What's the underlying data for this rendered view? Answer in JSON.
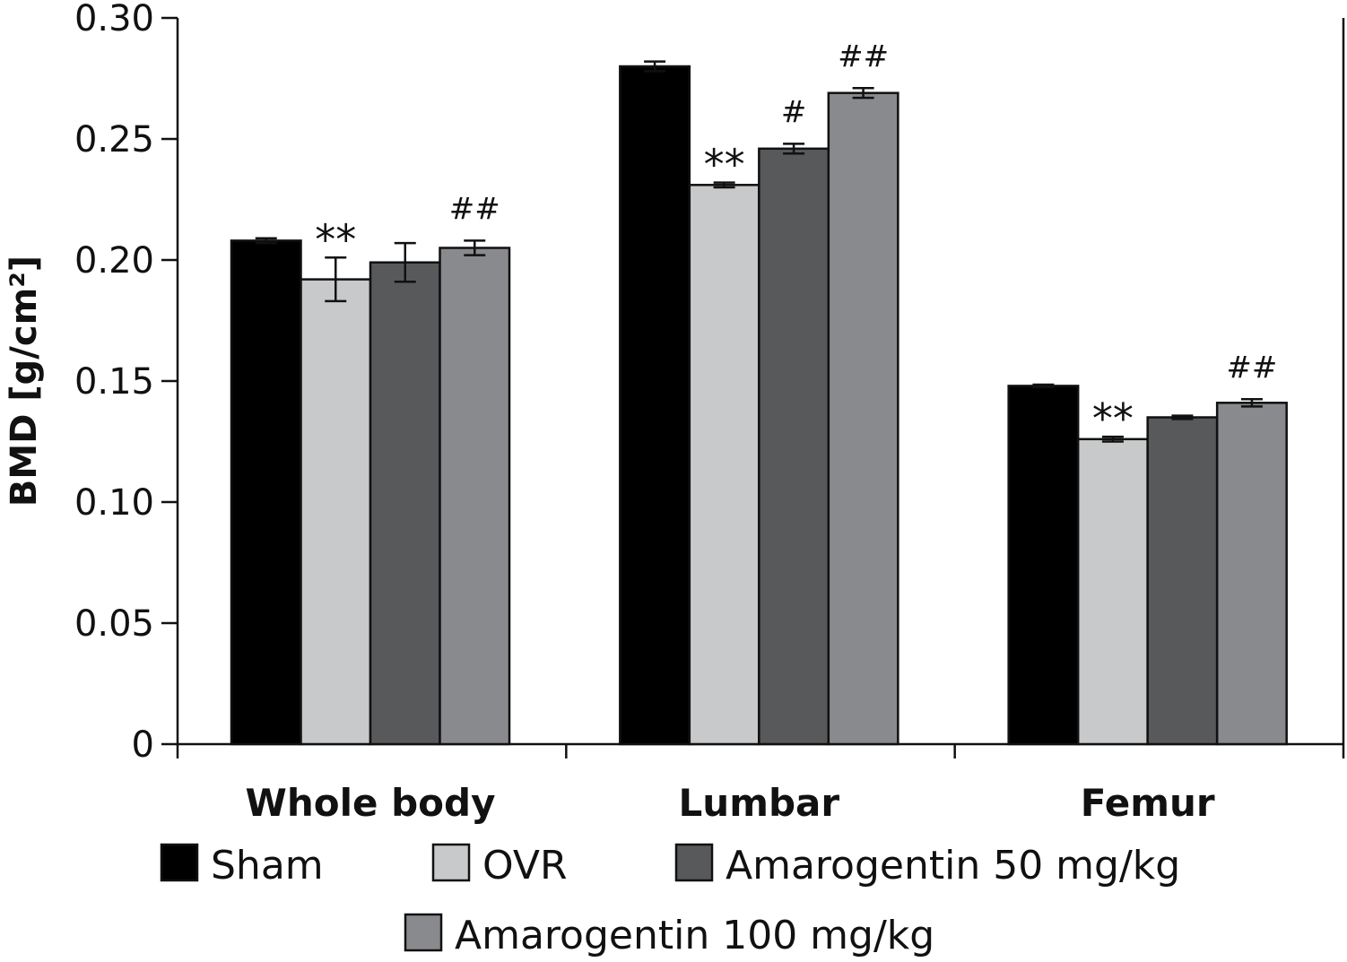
{
  "chart_data": {
    "type": "bar",
    "ylabel": "BMD [g/cm²]",
    "xlabel": "",
    "ylim": [
      0,
      0.3
    ],
    "yticks": [
      0,
      0.05,
      0.1,
      0.15,
      0.2,
      0.25,
      0.3
    ],
    "ytick_labels": [
      "0",
      "0.05",
      "0.10",
      "0.15",
      "0.20",
      "0.25",
      "0.30"
    ],
    "categories": [
      "Whole body",
      "Lumbar",
      "Femur"
    ],
    "series": [
      {
        "name": "Sham",
        "color": "#000000",
        "values": [
          0.208,
          0.28,
          0.148
        ],
        "errors": [
          0.001,
          0.002,
          0.0005
        ],
        "annotations": [
          "",
          "",
          ""
        ]
      },
      {
        "name": "OVR",
        "color": "#c8c9cb",
        "values": [
          0.192,
          0.231,
          0.126
        ],
        "errors": [
          0.009,
          0.001,
          0.001
        ],
        "annotations": [
          "**",
          "**",
          "**"
        ]
      },
      {
        "name": "Amarogentin 50 mg/kg",
        "color": "#58595b",
        "values": [
          0.199,
          0.246,
          0.135
        ],
        "errors": [
          0.008,
          0.002,
          0.0007
        ],
        "annotations": [
          "",
          "#",
          ""
        ]
      },
      {
        "name": "Amarogentin 100 mg/kg",
        "color": "#898a8d",
        "values": [
          0.205,
          0.269,
          0.141
        ],
        "errors": [
          0.003,
          0.002,
          0.0015
        ],
        "annotations": [
          "##",
          "##",
          "##"
        ]
      }
    ],
    "grid": false,
    "legend_position": "bottom"
  }
}
